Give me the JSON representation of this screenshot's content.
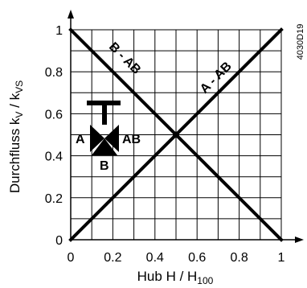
{
  "figure_code": "4030D19",
  "chart_data": {
    "type": "line",
    "xlabel": {
      "main": "Hub H / H",
      "sub": "100"
    },
    "ylabel": {
      "main": "Durchfluss k",
      "sub1": "V",
      "mid": " / k",
      "sub2": "VS"
    },
    "xlim": [
      0,
      1
    ],
    "ylim": [
      0,
      1
    ],
    "x_ticks": [
      "0",
      "0.2",
      "0.4",
      "0.6",
      "0.8",
      "1"
    ],
    "y_ticks": [
      "0",
      "0.2",
      "0.4",
      "0.6",
      "0.8",
      "1"
    ],
    "grid": true,
    "series": [
      {
        "name": "B - AB",
        "x": [
          0,
          1
        ],
        "y": [
          1,
          0
        ]
      },
      {
        "name": "A - AB",
        "x": [
          0,
          1
        ],
        "y": [
          0,
          1
        ]
      }
    ],
    "annotations": {
      "valve_port_a": "A",
      "valve_port_ab": "AB",
      "valve_port_b": "B"
    }
  }
}
